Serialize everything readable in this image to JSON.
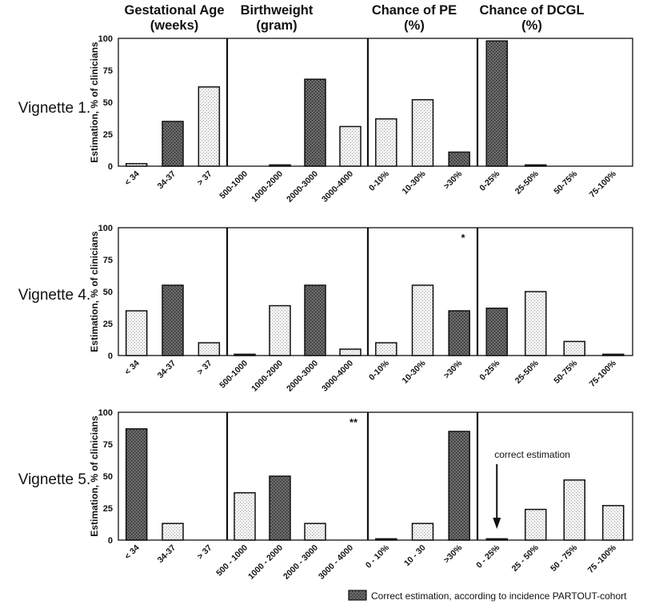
{
  "chart_data": {
    "type": "bar",
    "title": "",
    "ylabel": "Estimation, % of clinicians",
    "ylim": [
      0,
      100
    ],
    "yticks": [
      "0",
      "25",
      "50",
      "75",
      "100"
    ],
    "columns": [
      {
        "header_line1": "Gestational Age",
        "header_line2": "(weeks)"
      },
      {
        "header_line1": "Birthweight",
        "header_line2": "(gram)"
      },
      {
        "header_line1": "Chance of PE",
        "header_line2": "(%)"
      },
      {
        "header_line1": "Chance of DCGL",
        "header_line2": "(%)"
      }
    ],
    "vignettes": [
      {
        "label": "Vignette 1.",
        "panels": [
          {
            "categories": [
              "< 34",
              "34-37",
              "> 37"
            ],
            "values": [
              2,
              35,
              62
            ],
            "correct": [
              false,
              true,
              false
            ],
            "annotation": ""
          },
          {
            "categories": [
              "500-1000",
              "1000-2000",
              "2000-3000",
              "3000-4000"
            ],
            "values": [
              0,
              1,
              68,
              31
            ],
            "correct": [
              false,
              false,
              true,
              false
            ],
            "annotation": ""
          },
          {
            "categories": [
              "0-10%",
              "10-30%",
              ">30%"
            ],
            "values": [
              37,
              52,
              11
            ],
            "correct": [
              false,
              false,
              true
            ],
            "annotation": ""
          },
          {
            "categories": [
              "0-25%",
              "25-50%",
              "50-75%",
              "75-100%"
            ],
            "values": [
              98,
              1,
              0,
              0
            ],
            "correct": [
              true,
              true,
              false,
              false
            ],
            "annotation": ""
          }
        ]
      },
      {
        "label": "Vignette 4.",
        "panels": [
          {
            "categories": [
              "< 34",
              "34-37",
              "> 37"
            ],
            "values": [
              35,
              55,
              10
            ],
            "correct": [
              false,
              true,
              false
            ],
            "annotation": ""
          },
          {
            "categories": [
              "500-1000",
              "1000-2000",
              "2000-3000",
              "3000-4000"
            ],
            "values": [
              1,
              39,
              55,
              5
            ],
            "correct": [
              true,
              false,
              true,
              false
            ],
            "annotation": ""
          },
          {
            "categories": [
              "0-10%",
              "10-30%",
              ">30%"
            ],
            "values": [
              10,
              55,
              35
            ],
            "correct": [
              false,
              false,
              true
            ],
            "annotation": "*"
          },
          {
            "categories": [
              "0-25%",
              "25-50%",
              "50-75%",
              "75-100%"
            ],
            "values": [
              37,
              50,
              11,
              1
            ],
            "correct": [
              true,
              false,
              false,
              true
            ],
            "annotation": ""
          }
        ]
      },
      {
        "label": "Vignette 5.",
        "panels": [
          {
            "categories": [
              "< 34",
              "34-37",
              "> 37"
            ],
            "values": [
              87,
              13,
              0
            ],
            "correct": [
              true,
              false,
              false
            ],
            "annotation": ""
          },
          {
            "categories": [
              "500 - 1000",
              "1000 - 2000",
              "2000 - 3000",
              "3000 - 4000"
            ],
            "values": [
              37,
              50,
              13,
              0
            ],
            "correct": [
              false,
              true,
              false,
              false
            ],
            "annotation": "**"
          },
          {
            "categories": [
              "0 - 10%",
              "10 - 30",
              ">30%"
            ],
            "values": [
              1,
              13,
              85
            ],
            "correct": [
              true,
              false,
              true
            ],
            "annotation": ""
          },
          {
            "categories": [
              "0 - 25%",
              "25 - 50%",
              "50 - 75%",
              "75 -100%"
            ],
            "values": [
              1,
              24,
              47,
              27
            ],
            "correct": [
              true,
              false,
              false,
              false
            ],
            "annotation": "correct estimation"
          }
        ]
      }
    ],
    "legend": {
      "label": "Correct estimation, according to incidence PARTOUT-cohort",
      "position": "bottom-right"
    }
  },
  "colors": {
    "correct_fill": "#6b6b6b",
    "other_fill": "#f4f4f4",
    "stroke": "#111111"
  }
}
